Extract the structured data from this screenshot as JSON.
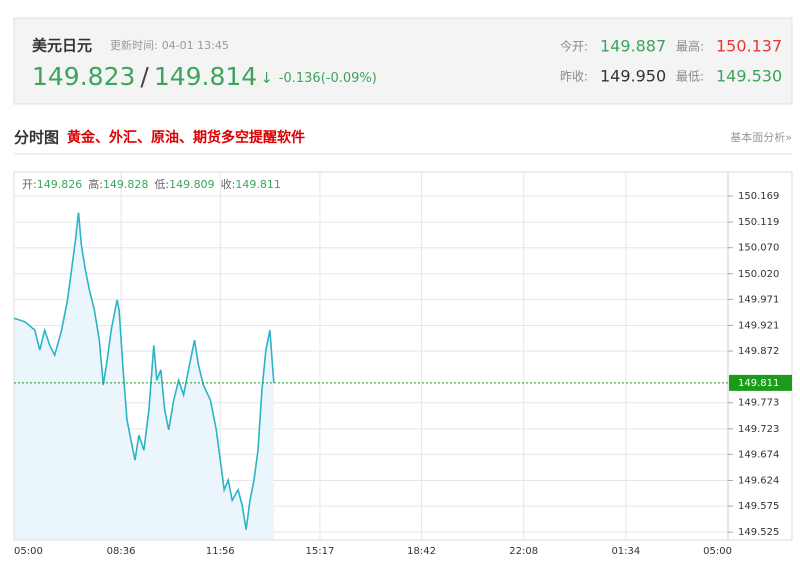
{
  "header": {
    "title": "美元日元",
    "update_label": "更新时间:",
    "update_time": "04-01 13:45",
    "bid": "149.823",
    "separator": "/",
    "ask": "149.814",
    "arrow": "↓",
    "change": "-0.136(-0.09%)",
    "stats": [
      {
        "label": "今开:",
        "value": "149.887"
      },
      {
        "label": "最高:",
        "value": "150.137"
      },
      {
        "label": "昨收:",
        "value": "149.950"
      },
      {
        "label": "最低:",
        "value": "149.530"
      }
    ]
  },
  "section": {
    "title": "分时图",
    "promo": "黄金、外汇、原油、期货多空提醒软件",
    "link": "基本面分析»"
  },
  "quote_bar": [
    {
      "label": "开:",
      "value": "149.826"
    },
    {
      "label": "高:",
      "value": "149.828"
    },
    {
      "label": "低:",
      "value": "149.809"
    },
    {
      "label": "收:",
      "value": "149.811"
    }
  ],
  "chart_data": {
    "type": "line",
    "color": "#2bb3c8",
    "fill": "#eaf6fb",
    "last_price_color": "#1a9b1a",
    "x": [
      0,
      22,
      42,
      52,
      62,
      72,
      82,
      96,
      108,
      116,
      124,
      130,
      136,
      144,
      152,
      162,
      172,
      180,
      188,
      196,
      208,
      212,
      220,
      228,
      236,
      244,
      252,
      262,
      272,
      282,
      288,
      296,
      304,
      312,
      322,
      332,
      342,
      352,
      364,
      372,
      382,
      396,
      408,
      416,
      424,
      432,
      440,
      452,
      460,
      468,
      476,
      484,
      492,
      500,
      508,
      516,
      524
    ],
    "values": [
      149.935,
      149.928,
      149.912,
      149.874,
      149.912,
      149.883,
      149.864,
      149.912,
      149.97,
      150.027,
      150.085,
      150.137,
      150.075,
      150.027,
      149.989,
      149.951,
      149.893,
      149.807,
      149.855,
      149.912,
      149.97,
      149.951,
      149.836,
      149.74,
      149.701,
      149.663,
      149.711,
      149.682,
      149.759,
      149.883,
      149.816,
      149.836,
      149.759,
      149.721,
      149.778,
      149.816,
      149.788,
      149.836,
      149.893,
      149.845,
      149.807,
      149.778,
      149.721,
      149.663,
      149.606,
      149.625,
      149.586,
      149.606,
      149.577,
      149.53,
      149.586,
      149.625,
      149.682,
      149.797,
      149.874,
      149.912,
      149.811
    ],
    "xlim": [
      0,
      1440
    ],
    "xticks": [
      {
        "value": 0,
        "label": "05:00"
      },
      {
        "value": 216,
        "label": "08:36"
      },
      {
        "value": 416,
        "label": "11:56"
      },
      {
        "value": 617,
        "label": "15:17"
      },
      {
        "value": 822,
        "label": "18:42"
      },
      {
        "value": 1028,
        "label": "22:08"
      },
      {
        "value": 1234,
        "label": "01:34"
      },
      {
        "value": 1440,
        "label": "05:00"
      }
    ],
    "ylim": [
      149.51,
      150.215
    ],
    "yticks": [
      150.169,
      150.119,
      {
        "value": 150.07,
        "label": "150.070"
      },
      {
        "value": 150.02,
        "label": "150.020"
      },
      149.971,
      149.921,
      149.872,
      149.773,
      149.723,
      149.674,
      149.624,
      149.575,
      149.525
    ],
    "last_price": 149.811,
    "grid": true
  }
}
